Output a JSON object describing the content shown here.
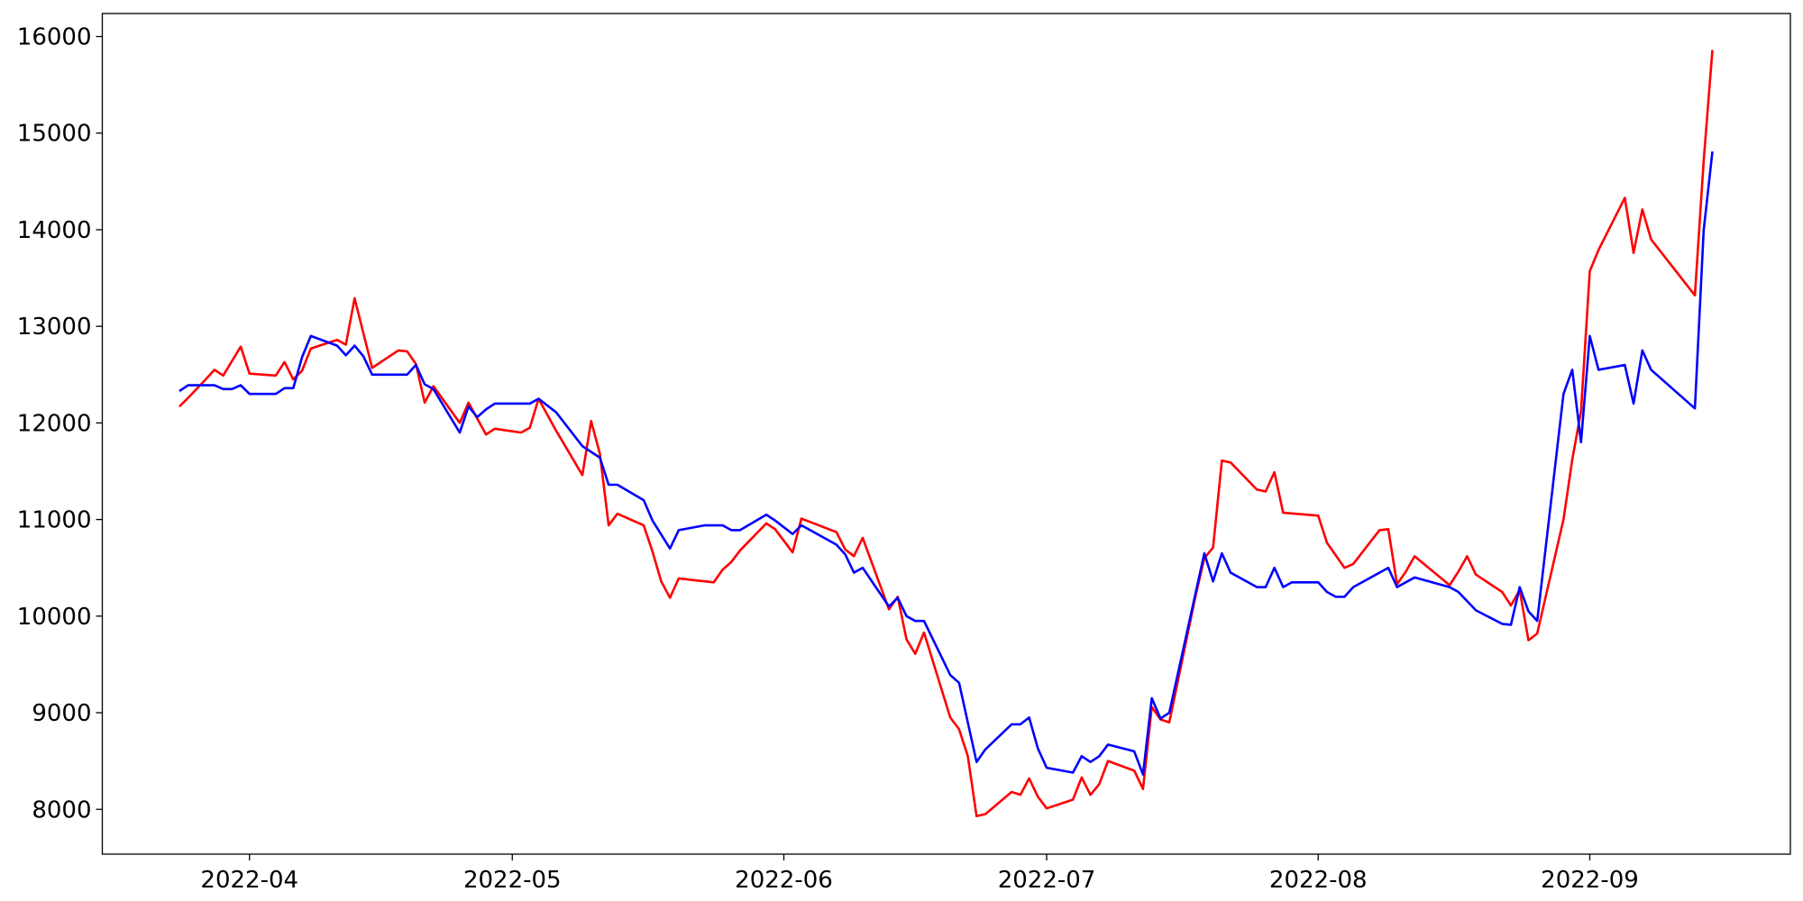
{
  "chart_data": {
    "type": "line",
    "series": [
      {
        "color": "red",
        "x": [
          19075,
          19076,
          19078,
          19079,
          19080,
          19082,
          19083,
          19086,
          19087,
          19088,
          19089,
          19090,
          19092,
          19093,
          19094,
          19095,
          19097,
          19100,
          19101,
          19102,
          19103,
          19104,
          19107,
          19108,
          19110,
          19111,
          19114,
          19115,
          19116,
          19118,
          19121,
          19122,
          19123,
          19124,
          19125,
          19128,
          19129,
          19130,
          19131,
          19132,
          19136,
          19137,
          19138,
          19139,
          19142,
          19143,
          19145,
          19146,
          19150,
          19151,
          19152,
          19153,
          19156,
          19157,
          19158,
          19159,
          19160,
          19163,
          19164,
          19165,
          19166,
          19167,
          19170,
          19171,
          19172,
          19173,
          19174,
          19177,
          19178,
          19179,
          19180,
          19181,
          19184,
          19185,
          19186,
          19187,
          19188,
          19191,
          19192,
          19193,
          19194,
          19195,
          19198,
          19199,
          19200,
          19201,
          19205,
          19206,
          19208,
          19209,
          19212,
          19213,
          19214,
          19215,
          19216,
          19220,
          19221,
          19222,
          19223,
          19226,
          19227,
          19228,
          19229,
          19230,
          19233,
          19234,
          19235,
          19236,
          19237,
          19240,
          19241,
          19242,
          19243,
          19248,
          19249,
          19250
        ],
        "values": [
          12170,
          12260,
          12450,
          12550,
          12490,
          12790,
          12510,
          12490,
          12630,
          12450,
          12540,
          12770,
          12830,
          12860,
          12810,
          13290,
          12570,
          12750,
          12740,
          12610,
          12210,
          12380,
          12000,
          12210,
          11880,
          11940,
          11900,
          11950,
          12250,
          11920,
          11460,
          12020,
          11680,
          10940,
          11060,
          10940,
          10670,
          10360,
          10190,
          10390,
          10350,
          10480,
          10560,
          10680,
          10960,
          10900,
          10660,
          11010,
          10870,
          10690,
          10620,
          10810,
          10070,
          10200,
          9760,
          9610,
          9830,
          8950,
          8830,
          8550,
          7930,
          7950,
          8180,
          8150,
          8320,
          8130,
          8010,
          8100,
          8330,
          8150,
          8260,
          8500,
          8400,
          8210,
          9060,
          8930,
          8900,
          10210,
          10600,
          10710,
          11610,
          11590,
          11310,
          11290,
          11490,
          11070,
          11040,
          10760,
          10500,
          10540,
          10890,
          10900,
          10330,
          10460,
          10620,
          10320,
          10460,
          10620,
          10430,
          10250,
          10110,
          10270,
          9750,
          9820,
          11000,
          11620,
          12120,
          13570,
          13790,
          14330,
          13760,
          14210,
          13900,
          13320,
          14710,
          15860
        ]
      },
      {
        "color": "blue",
        "x": [
          19075,
          19076,
          19079,
          19080,
          19081,
          19082,
          19083,
          19086,
          19087,
          19088,
          19089,
          19090,
          19093,
          19094,
          19095,
          19096,
          19097,
          19101,
          19102,
          19103,
          19104,
          19107,
          19108,
          19109,
          19110,
          19111,
          19115,
          19116,
          19118,
          19121,
          19123,
          19124,
          19125,
          19128,
          19129,
          19131,
          19132,
          19135,
          19137,
          19138,
          19139,
          19142,
          19143,
          19145,
          19146,
          19150,
          19151,
          19152,
          19153,
          19156,
          19157,
          19158,
          19159,
          19160,
          19163,
          19164,
          19165,
          19166,
          19167,
          19170,
          19171,
          19172,
          19173,
          19174,
          19177,
          19178,
          19179,
          19180,
          19181,
          19184,
          19185,
          19186,
          19187,
          19188,
          19192,
          19193,
          19194,
          19195,
          19198,
          19199,
          19200,
          19201,
          19202,
          19205,
          19206,
          19207,
          19208,
          19209,
          19213,
          19214,
          19216,
          19220,
          19221,
          19223,
          19226,
          19227,
          19228,
          19229,
          19230,
          19233,
          19234,
          19235,
          19236,
          19237,
          19240,
          19241,
          19242,
          19243,
          19248,
          19249,
          19250
        ],
        "values": [
          12330,
          12390,
          12390,
          12350,
          12350,
          12390,
          12300,
          12300,
          12360,
          12360,
          12680,
          12900,
          12800,
          12700,
          12800,
          12690,
          12500,
          12500,
          12600,
          12400,
          12350,
          11900,
          12170,
          12060,
          12140,
          12200,
          12200,
          12250,
          12110,
          11760,
          11640,
          11360,
          11360,
          11200,
          10990,
          10700,
          10890,
          10940,
          10940,
          10890,
          10890,
          11050,
          10990,
          10850,
          10940,
          10740,
          10640,
          10450,
          10500,
          10100,
          10190,
          10000,
          9950,
          9950,
          9390,
          9310,
          8900,
          8490,
          8620,
          8880,
          8880,
          8950,
          8630,
          8430,
          8380,
          8550,
          8490,
          8550,
          8670,
          8600,
          8360,
          9150,
          8940,
          9000,
          10650,
          10360,
          10650,
          10450,
          10300,
          10300,
          10500,
          10300,
          10350,
          10350,
          10250,
          10200,
          10200,
          10300,
          10500,
          10300,
          10400,
          10300,
          10250,
          10060,
          9920,
          9910,
          10300,
          10050,
          9950,
          12300,
          12550,
          11800,
          12900,
          12550,
          12600,
          12200,
          12750,
          12550,
          12150,
          13990,
          14810
        ]
      }
    ],
    "xlim": [
      19066.2,
      19258.9
    ],
    "xticks": [
      {
        "value": 19083,
        "label": "2022-04"
      },
      {
        "value": 19113,
        "label": "2022-05"
      },
      {
        "value": 19144,
        "label": "2022-06"
      },
      {
        "value": 19174,
        "label": "2022-07"
      },
      {
        "value": 19205,
        "label": "2022-08"
      },
      {
        "value": 19236,
        "label": "2022-09"
      }
    ],
    "ylim": [
      7536,
      16238
    ],
    "yticks": [
      8000,
      9000,
      10000,
      11000,
      12000,
      13000,
      14000,
      15000,
      16000
    ],
    "grid": false
  }
}
